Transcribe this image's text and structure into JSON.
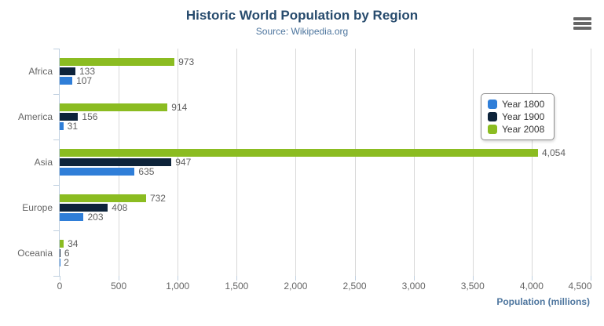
{
  "chart_data": {
    "type": "bar",
    "orientation": "horizontal",
    "title": "Historic World Population by Region",
    "subtitle": "Source: Wikipedia.org",
    "categories": [
      "Africa",
      "America",
      "Asia",
      "Europe",
      "Oceania"
    ],
    "series": [
      {
        "name": "Year 1800",
        "color": "#2f7ed8",
        "values": [
          107,
          31,
          635,
          203,
          2
        ],
        "labels": [
          "107",
          "31",
          "635",
          "203",
          "2"
        ]
      },
      {
        "name": "Year 1900",
        "color": "#0d233a",
        "values": [
          133,
          156,
          947,
          408,
          6
        ],
        "labels": [
          "133",
          "156",
          "947",
          "408",
          "6"
        ]
      },
      {
        "name": "Year 2008",
        "color": "#8bbc21",
        "values": [
          973,
          914,
          4054,
          732,
          34
        ],
        "labels": [
          "973",
          "914",
          "4,054",
          "732",
          "34"
        ]
      }
    ],
    "xlabel": "Population (millions)",
    "xlim": [
      0,
      4500
    ],
    "xticks": [
      0,
      500,
      1000,
      1500,
      2000,
      2500,
      3000,
      3500,
      4000,
      4500
    ],
    "xtick_labels": [
      "0",
      "500",
      "1,000",
      "1,500",
      "2,000",
      "2,500",
      "3,000",
      "3,500",
      "4,000",
      "4,500"
    ],
    "legend_position": "top-right",
    "grid": true
  },
  "export_menu": {
    "icon": "hamburger-icon"
  },
  "colors": {
    "title": "#274b6d",
    "subtitle": "#4d759e",
    "axis_line": "#C0D0E0",
    "gridline": "#d8d8d8",
    "data_label": "#606060",
    "category_label": "#666666",
    "axis_title": "#4d759e",
    "background": "#ffffff"
  }
}
